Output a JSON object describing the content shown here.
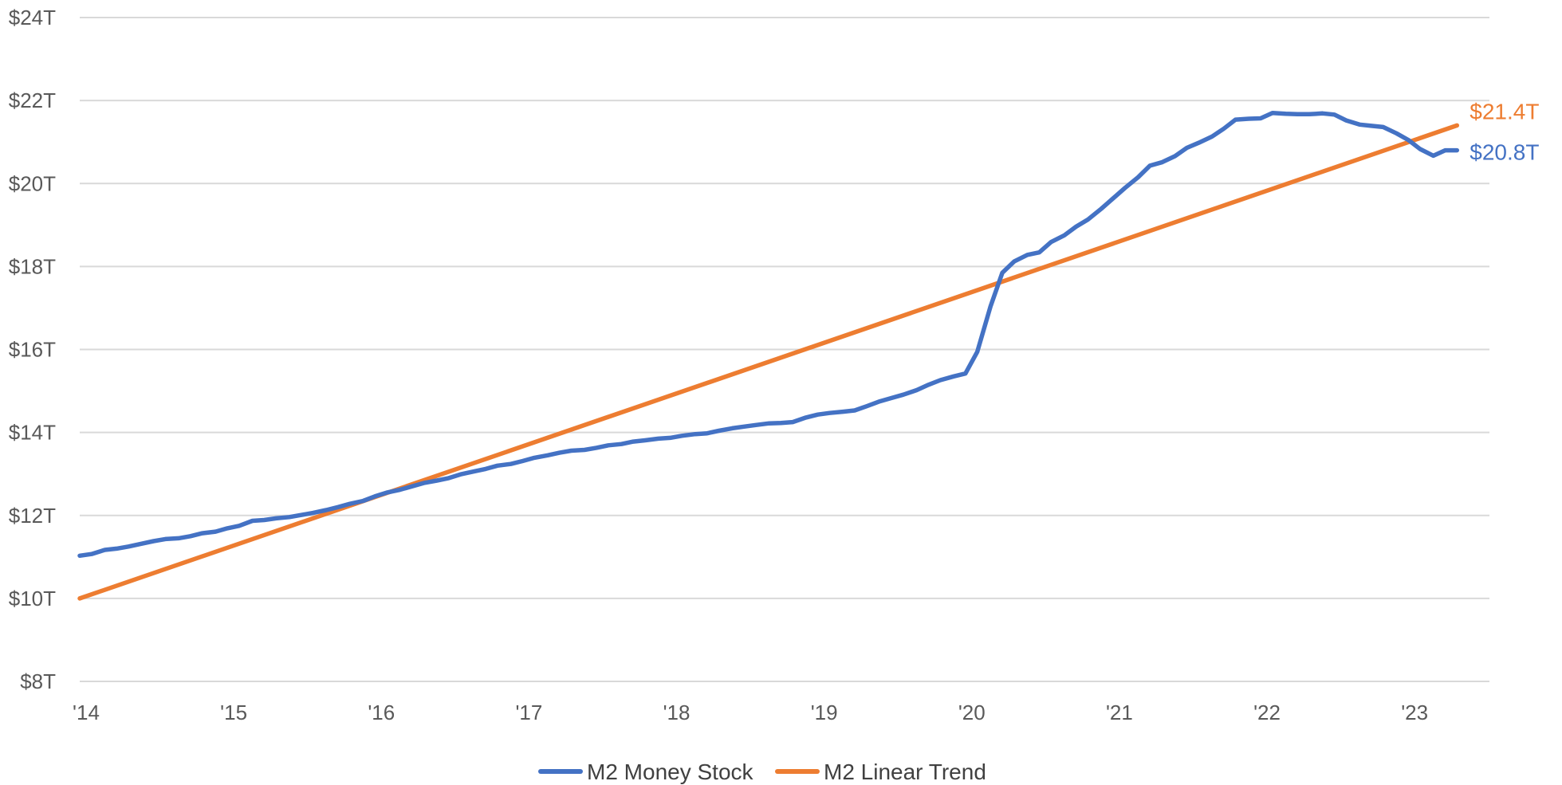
{
  "chart_data": {
    "type": "line",
    "title": "",
    "xlabel": "",
    "ylabel": "",
    "ylim": [
      8,
      24
    ],
    "y_ticks": [
      8,
      10,
      12,
      14,
      16,
      18,
      20,
      22,
      24
    ],
    "y_tick_labels": [
      "$8T",
      "$10T",
      "$12T",
      "$14T",
      "$16T",
      "$18T",
      "$20T",
      "$22T",
      "$24T"
    ],
    "x_ticks": [
      2014,
      2015,
      2016,
      2017,
      2018,
      2019,
      2020,
      2021,
      2022,
      2023
    ],
    "x_tick_labels": [
      "'14",
      "'15",
      "'16",
      "'17",
      "'18",
      "'19",
      "'20",
      "'21",
      "'22",
      "'23"
    ],
    "xlim": [
      2014,
      2023.55
    ],
    "grid": true,
    "legend_position": "bottom-center",
    "series": [
      {
        "name": "M2 Money Stock",
        "color": "#4472C4",
        "end_label": "$20.8T",
        "x": [
          2014.0,
          2014.08,
          2014.17,
          2014.25,
          2014.33,
          2014.42,
          2014.5,
          2014.58,
          2014.67,
          2014.75,
          2014.83,
          2014.92,
          2015.0,
          2015.08,
          2015.17,
          2015.25,
          2015.33,
          2015.42,
          2015.5,
          2015.58,
          2015.67,
          2015.75,
          2015.83,
          2015.92,
          2016.0,
          2016.08,
          2016.17,
          2016.25,
          2016.33,
          2016.42,
          2016.5,
          2016.58,
          2016.67,
          2016.75,
          2016.83,
          2016.92,
          2017.0,
          2017.08,
          2017.17,
          2017.25,
          2017.33,
          2017.42,
          2017.5,
          2017.58,
          2017.67,
          2017.75,
          2017.83,
          2017.92,
          2018.0,
          2018.08,
          2018.17,
          2018.25,
          2018.33,
          2018.42,
          2018.5,
          2018.58,
          2018.67,
          2018.75,
          2018.83,
          2018.92,
          2019.0,
          2019.08,
          2019.17,
          2019.25,
          2019.33,
          2019.42,
          2019.5,
          2019.58,
          2019.67,
          2019.75,
          2019.83,
          2019.92,
          2020.0,
          2020.08,
          2020.17,
          2020.25,
          2020.33,
          2020.42,
          2020.5,
          2020.58,
          2020.67,
          2020.75,
          2020.83,
          2020.92,
          2021.0,
          2021.08,
          2021.17,
          2021.25,
          2021.33,
          2021.42,
          2021.5,
          2021.58,
          2021.67,
          2021.75,
          2021.83,
          2021.92,
          2022.0,
          2022.08,
          2022.17,
          2022.25,
          2022.33,
          2022.42,
          2022.5,
          2022.58,
          2022.67,
          2022.75,
          2022.83,
          2022.92,
          2023.0,
          2023.08,
          2023.17,
          2023.25,
          2023.33
        ],
        "values": [
          11.03,
          11.07,
          11.17,
          11.2,
          11.25,
          11.32,
          11.38,
          11.43,
          11.45,
          11.5,
          11.57,
          11.61,
          11.69,
          11.75,
          11.87,
          11.89,
          11.93,
          11.96,
          12.01,
          12.06,
          12.13,
          12.2,
          12.28,
          12.35,
          12.46,
          12.55,
          12.62,
          12.7,
          12.78,
          12.84,
          12.9,
          12.99,
          13.06,
          13.12,
          13.2,
          13.24,
          13.31,
          13.39,
          13.45,
          13.51,
          13.56,
          13.58,
          13.63,
          13.69,
          13.72,
          13.78,
          13.81,
          13.85,
          13.87,
          13.92,
          13.96,
          13.98,
          14.04,
          14.1,
          14.14,
          14.18,
          14.22,
          14.23,
          14.25,
          14.36,
          14.43,
          14.47,
          14.5,
          14.53,
          14.63,
          14.75,
          14.83,
          14.91,
          15.02,
          15.15,
          15.26,
          15.35,
          15.42,
          15.94,
          17.04,
          17.85,
          18.12,
          18.28,
          18.34,
          18.59,
          18.75,
          18.96,
          19.13,
          19.39,
          19.64,
          19.89,
          20.15,
          20.43,
          20.51,
          20.66,
          20.86,
          20.98,
          21.13,
          21.32,
          21.54,
          21.56,
          21.57,
          21.7,
          21.68,
          21.67,
          21.67,
          21.69,
          21.66,
          21.52,
          21.42,
          21.39,
          21.36,
          21.21,
          21.05,
          20.83,
          20.67,
          20.8,
          20.8
        ]
      },
      {
        "name": "M2 Linear Trend",
        "color": "#ED7D31",
        "end_label": "$21.4T",
        "x": [
          2014.0,
          2023.33
        ],
        "values": [
          10.0,
          21.4
        ]
      }
    ]
  }
}
